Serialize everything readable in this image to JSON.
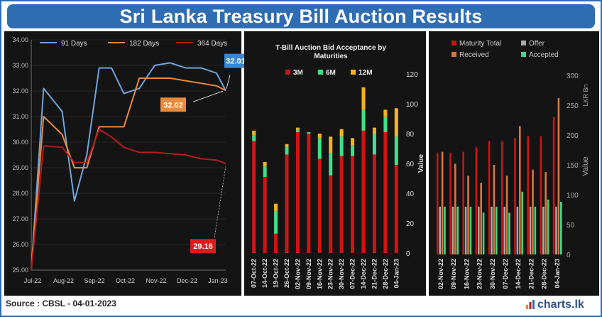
{
  "title": "Sri Lanka Treasury Bill Auction Results",
  "source": "Source : CBSL - 04-01-2023",
  "brand": "charts.lk",
  "colors": {
    "d91": "#6fa5dc",
    "d182": "#e98a3c",
    "d364": "#b51b1b",
    "m3": "#d01414",
    "m6": "#3fe08a",
    "m12": "#f5b41b",
    "maturity": "#c81616",
    "offer": "#a8a8a8",
    "received": "#d9773a",
    "accepted": "#3fd98a"
  },
  "chart_data": [
    {
      "type": "line",
      "legend_position": "top",
      "ylim": [
        25.0,
        34.0
      ],
      "yticks": [
        "25.00",
        "26.00",
        "27.00",
        "28.00",
        "29.00",
        "30.00",
        "31.00",
        "32.00",
        "33.00",
        "34.00"
      ],
      "xticks": [
        "Jul-22",
        "Aug-22",
        "Sep-22",
        "Oct-22",
        "Nov-22",
        "Dec-22",
        "Jan-23"
      ],
      "x": [
        0,
        0.4,
        1.0,
        1.4,
        1.8,
        2.2,
        2.6,
        3.0,
        3.5,
        4.0,
        4.5,
        5.0,
        5.5,
        6.0,
        6.3
      ],
      "series": [
        {
          "name": "91 Days",
          "values": [
            25.0,
            32.1,
            31.2,
            27.7,
            29.5,
            32.9,
            32.9,
            31.9,
            32.1,
            33.0,
            33.1,
            32.9,
            32.9,
            32.7,
            32.01
          ]
        },
        {
          "name": "182 Days",
          "values": [
            25.0,
            31.0,
            30.3,
            29.0,
            29.0,
            30.6,
            30.6,
            30.6,
            32.5,
            32.5,
            32.5,
            32.4,
            32.3,
            32.2,
            32.02
          ]
        },
        {
          "name": "364 Days",
          "values": [
            25.0,
            29.85,
            29.8,
            29.2,
            29.2,
            30.5,
            30.2,
            29.8,
            29.6,
            29.6,
            29.55,
            29.5,
            29.35,
            29.3,
            29.16
          ]
        }
      ],
      "annotations": {
        "d91_last": "32.01",
        "d182_last": "32.02",
        "d364_last": "29.16"
      }
    },
    {
      "type": "bar",
      "stacked": true,
      "title": "T-Bill Auction Bid Acceptance by Maturities",
      "ylabel": "Value",
      "ylim": [
        0,
        120
      ],
      "yticks": [
        "0",
        "20",
        "40",
        "60",
        "80",
        "100",
        "120"
      ],
      "categories": [
        "07-Oct-22",
        "14-Oct-22",
        "19-Oct-22",
        "26-Oct-22",
        "02-Nov-22",
        "09-Nov-22",
        "16-Nov-22",
        "23-Nov-22",
        "30-Nov-22",
        "07-Dec-22",
        "14-Dec-22",
        "21-Dec-22",
        "28-Dec-22",
        "04-Jan-23"
      ],
      "series": [
        {
          "name": "3M",
          "values": [
            75,
            51,
            13,
            66,
            81,
            80,
            63,
            52,
            65,
            65,
            82,
            66,
            81,
            59
          ]
        },
        {
          "name": "6M",
          "values": [
            4,
            7,
            15,
            5,
            2,
            1,
            14,
            15,
            13,
            7,
            14,
            14,
            10,
            19
          ]
        },
        {
          "name": "12M",
          "values": [
            3,
            3,
            5,
            2,
            1,
            0,
            3,
            11,
            5,
            5,
            15,
            4,
            5,
            19
          ]
        }
      ]
    },
    {
      "type": "bar",
      "grouped": true,
      "ylabel": "Value",
      "unit_label": "LKR Bn",
      "ylim": [
        0,
        300
      ],
      "yticks": [
        "0",
        "50",
        "100",
        "150",
        "200",
        "250",
        "300"
      ],
      "categories": [
        "02-Nov-22",
        "09-Nov-22",
        "16-Nov-22",
        "23-Nov-22",
        "30-Nov-22",
        "07-Dec-22",
        "14-Dec-22",
        "21-Dec-22",
        "28-Dec-22",
        "04-Jan-23"
      ],
      "series": [
        {
          "name": "Maturity Total",
          "values": [
            170,
            170,
            172,
            180,
            190,
            190,
            195,
            198,
            198,
            230
          ]
        },
        {
          "name": "Offer",
          "values": [
            80,
            80,
            80,
            80,
            80,
            80,
            80,
            80,
            80,
            80
          ]
        },
        {
          "name": "Received",
          "values": [
            172,
            152,
            132,
            120,
            150,
            132,
            215,
            142,
            138,
            262
          ]
        },
        {
          "name": "Accepted",
          "values": [
            80,
            80,
            80,
            70,
            80,
            70,
            105,
            80,
            92,
            88
          ]
        }
      ]
    }
  ]
}
